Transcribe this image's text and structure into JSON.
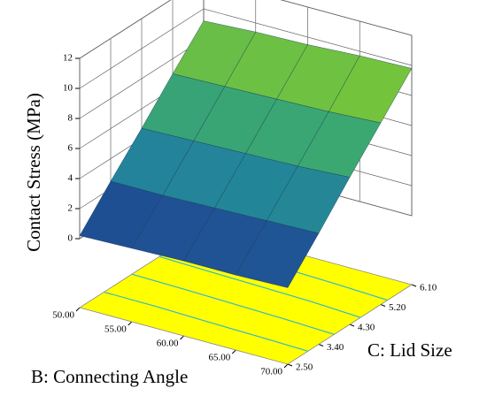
{
  "chart_data": {
    "type": "surface",
    "zlabel": "Contact Stress (MPa)",
    "xlabel": "B: Connecting Angle",
    "ylabel": "C: Lid Size",
    "x": [
      50,
      55,
      60,
      65,
      70
    ],
    "y": [
      2.5,
      3.4,
      4.3,
      5.2,
      6.1
    ],
    "z": [
      [
        0.2,
        0.3,
        0.4,
        0.4,
        0.5
      ],
      [
        2.5,
        2.5,
        2.6,
        2.7,
        2.8
      ],
      [
        4.7,
        4.8,
        4.9,
        5.0,
        5.2
      ],
      [
        7.0,
        7.1,
        7.2,
        7.3,
        7.5
      ],
      [
        9.2,
        9.4,
        9.5,
        9.7,
        9.8
      ]
    ],
    "xlim": [
      50,
      70
    ],
    "ylim": [
      2.5,
      6.1
    ],
    "zlim": [
      0,
      12
    ],
    "xticks": [
      {
        "value": 50,
        "label": "50.00"
      },
      {
        "value": 55,
        "label": "55.00"
      },
      {
        "value": 60,
        "label": "60.00"
      },
      {
        "value": 65,
        "label": "65.00"
      },
      {
        "value": 70,
        "label": "70.00"
      }
    ],
    "yticks": [
      {
        "value": 2.5,
        "label": "2.50"
      },
      {
        "value": 3.4,
        "label": "3.40"
      },
      {
        "value": 4.3,
        "label": "4.30"
      },
      {
        "value": 5.2,
        "label": "5.20"
      },
      {
        "value": 6.1,
        "label": "6.10"
      }
    ],
    "zticks": [
      0,
      2,
      4,
      6,
      8,
      10,
      12
    ],
    "floor_color": "#ffff00",
    "contour_color": "#33b8c8",
    "colormap": [
      "#1f2d8a",
      "#1f7fa0",
      "#3fae6a",
      "#9ad21c"
    ],
    "grid": true
  }
}
